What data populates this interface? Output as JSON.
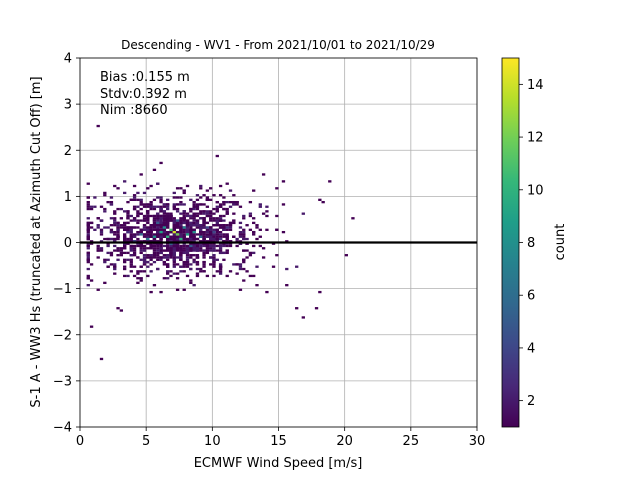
{
  "chart_data": {
    "type": "heatmap",
    "title": "Descending - WV1 - From 2021/10/01 to 2021/10/29",
    "xlabel": "ECMWF Wind Speed [m/s]",
    "ylabel": "S-1 A - WW3 Hs (truncated at Azimuth Cut Off) [m]",
    "xlim": [
      0,
      30
    ],
    "ylim": [
      -4,
      4
    ],
    "xticks": [
      0,
      5,
      10,
      15,
      20,
      25,
      30
    ],
    "yticks": [
      -4,
      -3,
      -2,
      -1,
      0,
      1,
      2,
      3,
      4
    ],
    "grid": true,
    "reference_line_y": 0,
    "stats": {
      "bias": "Bias :0.155 m",
      "stdv": "Stdv:0.392 m",
      "nim": "Nim :8660"
    },
    "colorbar": {
      "label": "count",
      "range": [
        1,
        15
      ],
      "ticks": [
        2,
        4,
        6,
        8,
        10,
        12,
        14
      ],
      "colormap": [
        "#440154",
        "#482878",
        "#3e4989",
        "#31688e",
        "#26828e",
        "#1f9e89",
        "#35b779",
        "#6ece58",
        "#b5de2b",
        "#fde725"
      ]
    },
    "bins": {
      "x_bin_width": 0.25,
      "y_bin_width": 0.05,
      "dense_cells": [
        {
          "x": 7.0,
          "y": 0.2,
          "count": 14
        },
        {
          "x": 7.25,
          "y": 0.15,
          "count": 12
        },
        {
          "x": 6.75,
          "y": 0.25,
          "count": 11
        },
        {
          "x": 6.5,
          "y": 0.1,
          "count": 10
        },
        {
          "x": 7.5,
          "y": 0.05,
          "count": 10
        },
        {
          "x": 6.0,
          "y": 0.2,
          "count": 9
        },
        {
          "x": 8.0,
          "y": 0.15,
          "count": 9
        },
        {
          "x": 5.5,
          "y": 0.1,
          "count": 8
        },
        {
          "x": 8.5,
          "y": 0.2,
          "count": 8
        },
        {
          "x": 6.25,
          "y": 0.3,
          "count": 8
        },
        {
          "x": 7.75,
          "y": 0.3,
          "count": 7
        },
        {
          "x": 5.0,
          "y": 0.05,
          "count": 7
        },
        {
          "x": 9.0,
          "y": 0.1,
          "count": 6
        },
        {
          "x": 4.5,
          "y": 0.15,
          "count": 6
        },
        {
          "x": 6.75,
          "y": -0.05,
          "count": 6
        },
        {
          "x": 7.25,
          "y": 0.45,
          "count": 5
        },
        {
          "x": 5.75,
          "y": 0.4,
          "count": 5
        },
        {
          "x": 8.25,
          "y": -0.1,
          "count": 5
        },
        {
          "x": 9.5,
          "y": 0.3,
          "count": 4
        },
        {
          "x": 4.0,
          "y": 0.0,
          "count": 4
        },
        {
          "x": 10.0,
          "y": 0.2,
          "count": 4
        },
        {
          "x": 3.5,
          "y": 0.2,
          "count": 3
        },
        {
          "x": 10.5,
          "y": 0.05,
          "count": 3
        },
        {
          "x": 11.0,
          "y": 0.3,
          "count": 3
        }
      ],
      "outlier_cells": [
        {
          "x": 1.25,
          "y": 2.5,
          "count": 1
        },
        {
          "x": 1.5,
          "y": -2.55,
          "count": 1
        },
        {
          "x": 0.75,
          "y": -1.85,
          "count": 1
        },
        {
          "x": 10.25,
          "y": 1.85,
          "count": 1
        },
        {
          "x": 20.5,
          "y": 0.5,
          "count": 1
        },
        {
          "x": 20.0,
          "y": -0.3,
          "count": 1
        },
        {
          "x": 18.75,
          "y": 1.3,
          "count": 1
        },
        {
          "x": 17.75,
          "y": -1.45,
          "count": 1
        },
        {
          "x": 16.75,
          "y": -1.65,
          "count": 1
        },
        {
          "x": 16.25,
          "y": -1.45,
          "count": 1
        },
        {
          "x": 6.0,
          "y": 1.7,
          "count": 1
        },
        {
          "x": 5.5,
          "y": 1.55,
          "count": 1
        },
        {
          "x": 13.75,
          "y": 1.45,
          "count": 1
        },
        {
          "x": 3.0,
          "y": -1.5,
          "count": 1
        },
        {
          "x": 2.75,
          "y": -1.45,
          "count": 1
        },
        {
          "x": 1.25,
          "y": -1.05,
          "count": 1
        },
        {
          "x": 4.5,
          "y": 1.45,
          "count": 1
        },
        {
          "x": 18.25,
          "y": 0.85,
          "count": 1
        },
        {
          "x": 15.25,
          "y": 1.3,
          "count": 1
        },
        {
          "x": 18.0,
          "y": -1.1,
          "count": 1
        },
        {
          "x": 12.0,
          "y": -1.05,
          "count": 1
        },
        {
          "x": 7.25,
          "y": -1.05,
          "count": 1
        }
      ]
    }
  }
}
